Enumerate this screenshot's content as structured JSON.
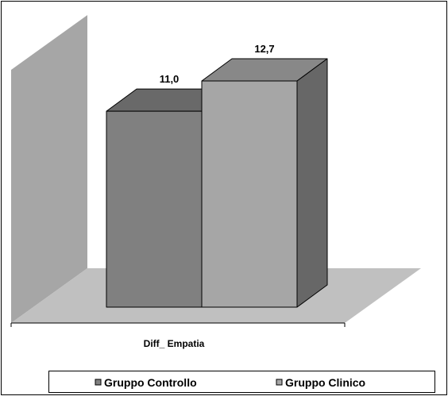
{
  "chart_data": {
    "type": "bar",
    "style": "3d-clustered-column",
    "categories": [
      "Diff_ Empatia"
    ],
    "series": [
      {
        "name": "Gruppo Controllo",
        "values": [
          11.0
        ],
        "label": "11,0",
        "color": "#808080"
      },
      {
        "name": "Gruppo Clinico",
        "values": [
          12.7
        ],
        "label": "12,7",
        "color": "#a6a6a6"
      }
    ],
    "title": "",
    "xlabel": "",
    "ylabel": "",
    "ylim": [
      0,
      15
    ],
    "grid": false,
    "legend": {
      "position": "bottom",
      "entries": [
        "Gruppo Controllo",
        "Gruppo Clinico"
      ]
    },
    "wall_color": "#a6a6a6",
    "floor_color": "#c0c0c0"
  }
}
